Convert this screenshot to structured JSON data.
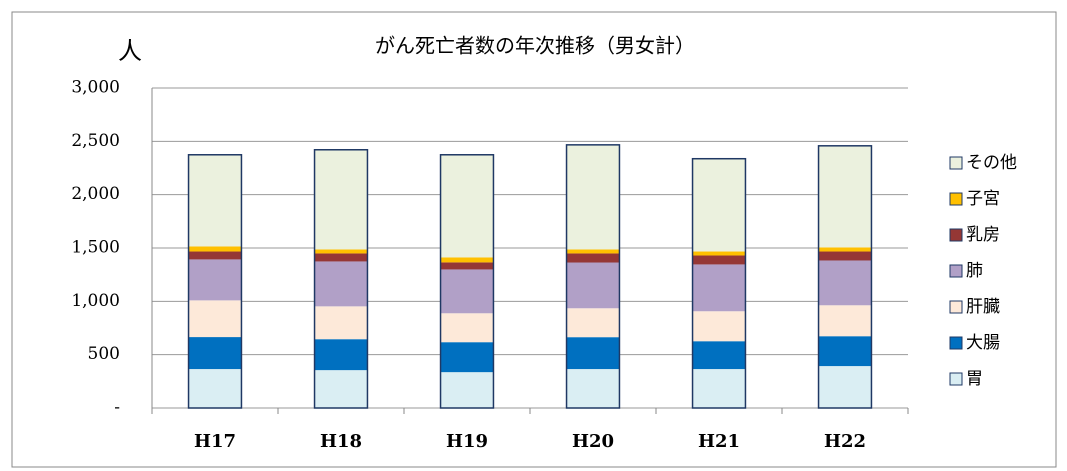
{
  "chart_data": {
    "type": "stacked_bar",
    "title": "がん死亡者数の年次推移（男女計）",
    "y_label": "人",
    "categories": [
      "H17",
      "H18",
      "H19",
      "H20",
      "H21",
      "H22"
    ],
    "series": [
      {
        "name": "胃",
        "color": "#daeef3",
        "values": [
          365,
          355,
          336,
          365,
          365,
          393
        ]
      },
      {
        "name": "大腸",
        "color": "#0070c0",
        "values": [
          300,
          290,
          281,
          299,
          261,
          280
        ]
      },
      {
        "name": "肝臓",
        "color": "#fde9d9",
        "values": [
          344,
          308,
          271,
          271,
          281,
          290
        ]
      },
      {
        "name": "肺",
        "color": "#b1a0c7",
        "values": [
          384,
          421,
          411,
          429,
          439,
          420
        ]
      },
      {
        "name": "乳房",
        "color": "#953735",
        "values": [
          74,
          75,
          66,
          85,
          84,
          84
        ]
      },
      {
        "name": "子宮",
        "color": "#ffc000",
        "values": [
          47,
          37,
          46,
          37,
          37,
          38
        ]
      },
      {
        "name": "その他",
        "color": "#ebf1de",
        "values": [
          860,
          935,
          963,
          981,
          870,
          953
        ]
      }
    ],
    "ylim": [
      0,
      3000
    ],
    "yticks": [
      {
        "value": 0,
        "label": "-"
      },
      {
        "value": 500,
        "label": "500"
      },
      {
        "value": 1000,
        "label": "1,000"
      },
      {
        "value": 1500,
        "label": "1,500"
      },
      {
        "value": 2000,
        "label": "2,000"
      },
      {
        "value": 2500,
        "label": "2,500"
      },
      {
        "value": 3000,
        "label": "3,000"
      }
    ],
    "grid": true,
    "legend": "right"
  }
}
